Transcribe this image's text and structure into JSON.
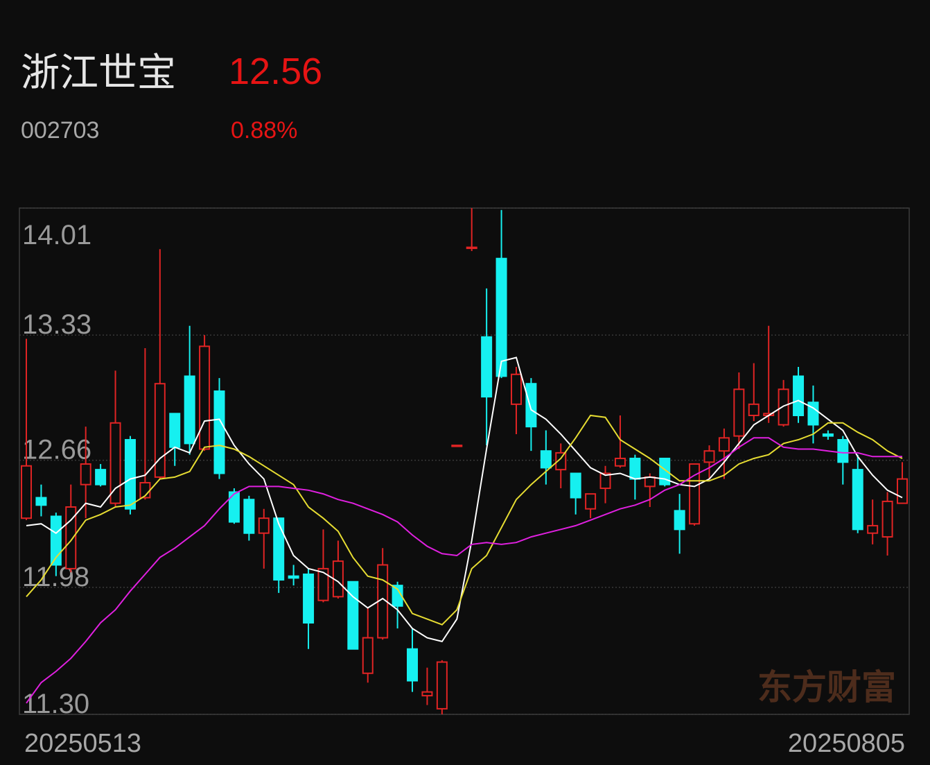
{
  "header": {
    "name": "浙江世宝",
    "price": "12.56",
    "code": "002703",
    "change": "0.88%"
  },
  "chart_data": {
    "type": "candlestick",
    "watermark": "东方财富",
    "categories": [
      "20250513",
      null,
      null,
      null,
      null,
      null,
      null,
      null,
      null,
      null,
      null,
      null,
      null,
      null,
      null,
      null,
      null,
      null,
      null,
      null,
      null,
      null,
      null,
      null,
      null,
      null,
      null,
      null,
      null,
      null,
      null,
      null,
      null,
      null,
      null,
      null,
      null,
      null,
      null,
      null,
      null,
      null,
      null,
      null,
      null,
      null,
      null,
      null,
      null,
      null,
      null,
      null,
      null,
      null,
      null,
      null,
      null,
      null,
      null,
      "20250805"
    ],
    "open": [
      12.35,
      12.46,
      12.36,
      12.08,
      12.53,
      12.61,
      12.43,
      12.77,
      12.46,
      12.57,
      12.91,
      13.11,
      12.72,
      13.03,
      12.49,
      12.45,
      12.27,
      12.35,
      12.04,
      12.05,
      11.91,
      11.93,
      12.01,
      11.52,
      11.71,
      11.99,
      11.65,
      11.4,
      11.33,
      12.74,
      13.8,
      13.32,
      13.74,
      12.96,
      13.07,
      12.71,
      12.61,
      12.59,
      12.4,
      12.51,
      12.63,
      12.67,
      12.52,
      12.67,
      12.39,
      12.32,
      12.65,
      12.71,
      12.79,
      12.9,
      12.9,
      12.85,
      13.11,
      12.97,
      12.8,
      12.77,
      12.61,
      12.27,
      12.25,
      12.43
    ],
    "high": [
      13.31,
      12.53,
      12.38,
      12.53,
      12.84,
      12.64,
      13.14,
      12.79,
      13.26,
      13.79,
      12.91,
      13.38,
      13.33,
      13.1,
      12.51,
      12.47,
      12.4,
      12.35,
      12.1,
      12.08,
      12.29,
      12.23,
      12.01,
      11.87,
      12.19,
      12.01,
      11.76,
      11.55,
      11.59,
      12.74,
      14.01,
      13.58,
      14.0,
      13.16,
      13.1,
      12.82,
      12.75,
      12.59,
      12.48,
      12.63,
      12.9,
      12.69,
      12.59,
      12.67,
      12.48,
      12.64,
      12.74,
      12.83,
      13.13,
      13.18,
      13.38,
      13.09,
      13.16,
      13.06,
      12.82,
      12.79,
      12.69,
      12.45,
      12.49,
      12.65
    ],
    "low": [
      12.34,
      12.36,
      12.04,
      12.06,
      12.35,
      12.52,
      12.41,
      12.37,
      12.45,
      12.56,
      12.63,
      12.69,
      12.71,
      12.56,
      12.32,
      12.23,
      12.08,
      11.95,
      11.99,
      11.65,
      11.9,
      11.92,
      11.65,
      11.47,
      11.7,
      11.76,
      11.42,
      11.35,
      11.3,
      12.74,
      13.78,
      12.74,
      13.1,
      12.8,
      12.71,
      12.53,
      12.51,
      12.37,
      12.35,
      12.43,
      12.62,
      12.45,
      12.41,
      12.52,
      12.16,
      12.31,
      12.56,
      12.56,
      12.72,
      12.87,
      12.86,
      12.84,
      12.86,
      12.75,
      12.77,
      12.53,
      12.27,
      12.21,
      12.15,
      12.43
    ],
    "close": [
      12.63,
      12.42,
      12.1,
      12.41,
      12.64,
      12.53,
      12.86,
      12.4,
      12.54,
      13.07,
      12.73,
      12.75,
      13.27,
      12.59,
      12.33,
      12.27,
      12.35,
      12.02,
      12.03,
      11.79,
      12.08,
      12.12,
      11.65,
      11.71,
      12.1,
      11.88,
      11.48,
      11.42,
      11.58,
      12.74,
      13.8,
      13.0,
      13.11,
      13.12,
      12.84,
      12.62,
      12.7,
      12.46,
      12.48,
      12.59,
      12.67,
      12.56,
      12.57,
      12.53,
      12.29,
      12.64,
      12.71,
      12.78,
      13.04,
      12.96,
      12.91,
      13.04,
      12.9,
      12.85,
      12.79,
      12.65,
      12.29,
      12.31,
      12.44,
      12.56
    ],
    "up_color": "#e02424",
    "down_color": "#16f0f0",
    "lines": [
      {
        "color": "#ffffff",
        "values": [
          12.31,
          12.32,
          12.27,
          12.34,
          12.43,
          12.41,
          12.51,
          12.56,
          12.58,
          12.67,
          12.73,
          12.7,
          12.87,
          12.88,
          12.74,
          12.64,
          12.56,
          12.32,
          12.15,
          12.08,
          12.06,
          12.01,
          11.93,
          11.87,
          11.92,
          11.86,
          11.76,
          11.71,
          11.69,
          11.81,
          12.23,
          12.72,
          13.19,
          13.21,
          12.93,
          12.88,
          12.8,
          12.71,
          12.62,
          12.58,
          12.59,
          12.56,
          12.57,
          12.56,
          12.53,
          12.52,
          12.56,
          12.65,
          12.75,
          12.85,
          12.9,
          12.95,
          12.98,
          12.94,
          12.88,
          12.82,
          12.68,
          12.58,
          12.5,
          12.46
        ]
      },
      {
        "color": "#e6dc32",
        "values": [
          11.93,
          12.02,
          12.14,
          12.23,
          12.34,
          12.37,
          12.41,
          12.42,
          12.47,
          12.56,
          12.57,
          12.6,
          12.73,
          12.74,
          12.72,
          12.68,
          12.63,
          12.58,
          12.53,
          12.41,
          12.35,
          12.28,
          12.14,
          12.04,
          12.02,
          11.97,
          11.84,
          11.81,
          11.78,
          11.86,
          12.08,
          12.15,
          12.3,
          12.45,
          12.53,
          12.6,
          12.67,
          12.78,
          12.9,
          12.89,
          12.77,
          12.72,
          12.67,
          12.61,
          12.55,
          12.55,
          12.55,
          12.58,
          12.64,
          12.67,
          12.69,
          12.75,
          12.77,
          12.8,
          12.86,
          12.86,
          12.81,
          12.77,
          12.71,
          12.67
        ]
      },
      {
        "color": "#e020e0",
        "values": [
          11.36,
          11.47,
          11.53,
          11.6,
          11.69,
          11.79,
          11.86,
          11.96,
          12.05,
          12.14,
          12.19,
          12.25,
          12.31,
          12.4,
          12.48,
          12.52,
          12.52,
          12.52,
          12.51,
          12.5,
          12.48,
          12.45,
          12.43,
          12.4,
          12.37,
          12.33,
          12.26,
          12.2,
          12.16,
          12.15,
          12.21,
          12.22,
          12.21,
          12.22,
          12.25,
          12.27,
          12.29,
          12.31,
          12.34,
          12.37,
          12.4,
          12.42,
          12.45,
          12.5,
          12.53,
          12.58,
          12.62,
          12.67,
          12.73,
          12.78,
          12.78,
          12.73,
          12.72,
          12.72,
          12.71,
          12.7,
          12.7,
          12.68,
          12.68,
          12.68
        ]
      }
    ],
    "ylim": [
      11.3,
      14.01
    ],
    "yticks": [
      14.01,
      13.33,
      12.66,
      11.98,
      {
        "value": 11.3,
        "label": "11.30"
      }
    ],
    "grid": true
  }
}
